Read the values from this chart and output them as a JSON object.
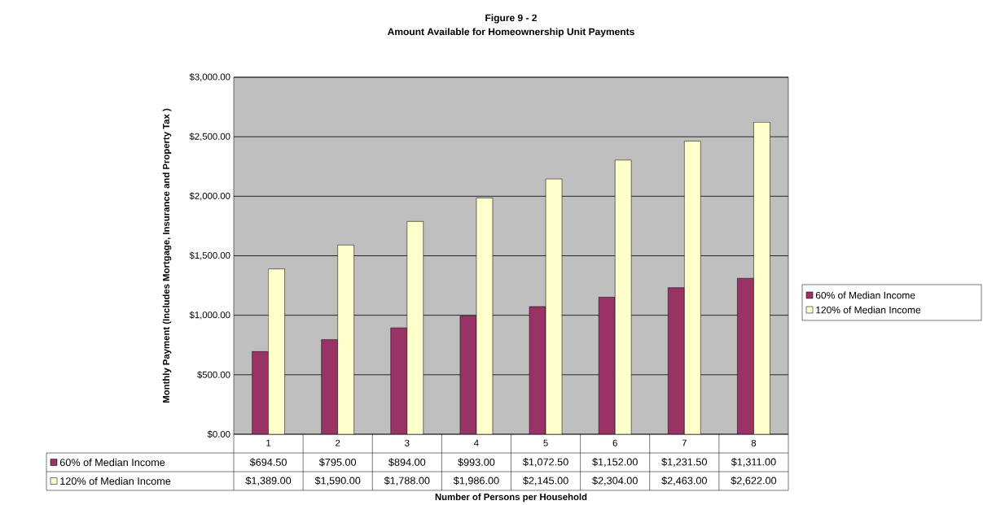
{
  "chart_data": {
    "type": "bar",
    "title": "Figure 9 - 2",
    "subtitle": "Amount Available for Homeownership Unit Payments",
    "annotations": [
      "Number of Persons per Household"
    ],
    "ylabel": "Monthly Payment (Includes Mortgage, Insurance and Property Tax )",
    "categories": [
      "1",
      "2",
      "3",
      "4",
      "5",
      "6",
      "7",
      "8"
    ],
    "series": [
      {
        "name": "60% of Median Income",
        "color": "#993366",
        "values": [
          694.5,
          795,
          894,
          993,
          1072.5,
          1152,
          1231.5,
          1311
        ],
        "value_labels": [
          "$694.50",
          "$795.00",
          "$894.00",
          "$993.00",
          "$1,072.50",
          "$1,152.00",
          "$1,231.50",
          "$1,311.00"
        ]
      },
      {
        "name": "120% of Median Income",
        "color": "#ffffcc",
        "values": [
          1389,
          1590,
          1788,
          1986,
          2145,
          2304,
          2463,
          2622
        ],
        "value_labels": [
          "$1,389.00",
          "$1,590.00",
          "$1,788.00",
          "$1,986.00",
          "$2,145.00",
          "$2,304.00",
          "$2,463.00",
          "$2,622.00"
        ]
      }
    ],
    "ylim": [
      0,
      3000
    ],
    "yticks": [
      {
        "value": 0,
        "label": "$0.00"
      },
      {
        "value": 500,
        "label": "$500.00"
      },
      {
        "value": 1000,
        "label": "$1,000.00"
      },
      {
        "value": 1500,
        "label": "$1,500.00"
      },
      {
        "value": 2000,
        "label": "$2,000.00"
      },
      {
        "value": 2500,
        "label": "$2,500.00"
      },
      {
        "value": 3000,
        "label": "$3,000.00"
      }
    ],
    "grid": "y",
    "legend": "right"
  }
}
